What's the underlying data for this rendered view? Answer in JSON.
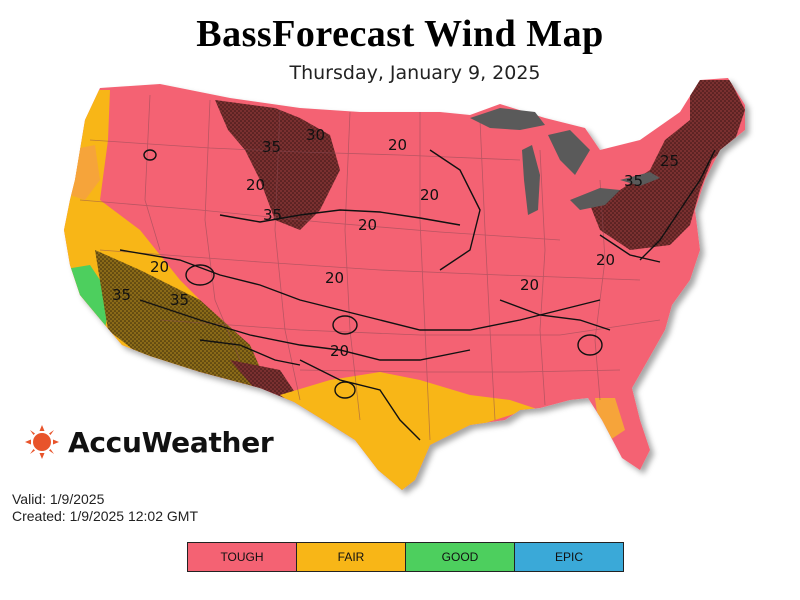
{
  "header": {
    "title": "BassForecast Wind Map",
    "subtitle": "Thursday, January 9, 2025"
  },
  "brand": {
    "name": "AccuWeather",
    "color": "#e8542b"
  },
  "info": {
    "valid": "Valid: 1/9/2025",
    "created": "Created: 1/9/2025 12:02 GMT"
  },
  "legend": [
    {
      "label": "TOUGH",
      "color": "#f46273"
    },
    {
      "label": "FAIR",
      "color": "#f8b617"
    },
    {
      "label": "GOOD",
      "color": "#4dcf5e"
    },
    {
      "label": "EPIC",
      "color": "#3aa9d8"
    }
  ],
  "contour_labels": [
    "30",
    "35",
    "20",
    "20",
    "20",
    "20",
    "20",
    "20",
    "20",
    "20",
    "25",
    "35",
    "35",
    "20",
    "35",
    "35"
  ],
  "colors": {
    "tough": "#f46273",
    "fair": "#f8b617",
    "good": "#4dcf5e",
    "dark": "#6b2a2a",
    "lake": "#5a5a5a"
  }
}
